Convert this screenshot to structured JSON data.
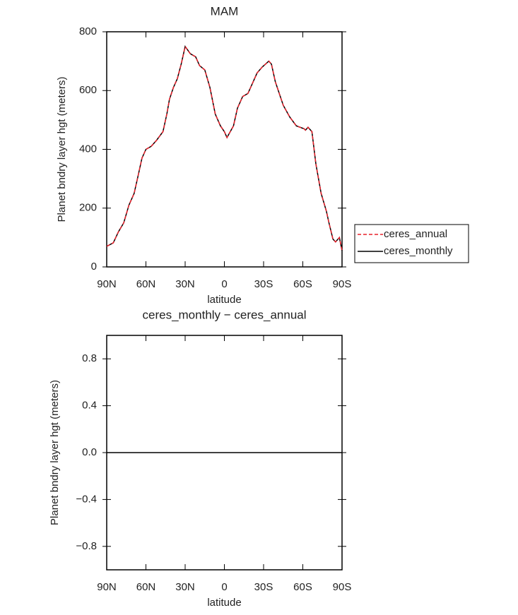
{
  "chart_data": [
    {
      "type": "line",
      "title": "MAM",
      "xlabel": "latitude",
      "ylabel": "Planet bndry layer hgt (meters)",
      "xlim": [
        90,
        -90
      ],
      "ylim": [
        0,
        800
      ],
      "xticks": [
        {
          "value": 90,
          "label": "90N"
        },
        {
          "value": 60,
          "label": "60N"
        },
        {
          "value": 30,
          "label": "30N"
        },
        0,
        {
          "value": -30,
          "label": "30S"
        },
        {
          "value": -60,
          "label": "60S"
        },
        {
          "value": -90,
          "label": "90S"
        }
      ],
      "yticks": [
        0,
        200,
        400,
        600,
        800
      ],
      "x": [
        90,
        85,
        81,
        77,
        73,
        69,
        66,
        63,
        60,
        56,
        52,
        47,
        44,
        42,
        39,
        36,
        33,
        30,
        26,
        22,
        19,
        15,
        11,
        7,
        3,
        0,
        -2,
        -7,
        -10,
        -14,
        -18,
        -21,
        -25,
        -29,
        -34,
        -36,
        -39,
        -45,
        -50,
        -55,
        -61,
        -62,
        -64,
        -67,
        -70,
        -74,
        -78,
        -80,
        -83,
        -85,
        -88,
        -90
      ],
      "series": [
        {
          "name": "ceres_annual",
          "color": "#e8202a",
          "dash": true,
          "values": [
            70,
            82,
            120,
            150,
            210,
            250,
            310,
            370,
            400,
            410,
            430,
            460,
            520,
            570,
            610,
            640,
            690,
            750,
            725,
            715,
            685,
            670,
            610,
            520,
            480,
            460,
            440,
            480,
            540,
            580,
            590,
            620,
            660,
            680,
            700,
            690,
            630,
            550,
            510,
            480,
            470,
            465,
            475,
            460,
            350,
            250,
            190,
            150,
            95,
            85,
            100,
            55
          ]
        },
        {
          "name": "ceres_monthly",
          "color": "#000000",
          "dash": false,
          "values": [
            70,
            82,
            120,
            150,
            210,
            250,
            310,
            370,
            400,
            410,
            430,
            460,
            520,
            570,
            610,
            640,
            690,
            750,
            725,
            715,
            685,
            670,
            610,
            520,
            480,
            460,
            440,
            480,
            540,
            580,
            590,
            620,
            660,
            680,
            700,
            690,
            630,
            550,
            510,
            480,
            470,
            465,
            475,
            460,
            350,
            250,
            190,
            150,
            95,
            85,
            100,
            55
          ]
        }
      ],
      "legend": "outside-right"
    },
    {
      "type": "line",
      "title": "ceres_monthly − ceres_annual",
      "xlabel": "latitude",
      "ylabel": "Planet bndry layer hgt (meters)",
      "xlim": [
        90,
        -90
      ],
      "ylim": [
        -1,
        1
      ],
      "xticks": [
        {
          "value": 90,
          "label": "90N"
        },
        {
          "value": 60,
          "label": "60N"
        },
        {
          "value": 30,
          "label": "30N"
        },
        0,
        {
          "value": -30,
          "label": "30S"
        },
        {
          "value": -60,
          "label": "60S"
        },
        {
          "value": -90,
          "label": "90S"
        }
      ],
      "yticks": [
        {
          "value": -0.8,
          "label": "−0.8"
        },
        {
          "value": -0.4,
          "label": "−0.4"
        },
        {
          "value": 0,
          "label": "0.0"
        },
        0.4,
        0.8
      ],
      "x": [
        90,
        -90
      ],
      "values": [
        0,
        0
      ],
      "color": "#000000"
    }
  ]
}
